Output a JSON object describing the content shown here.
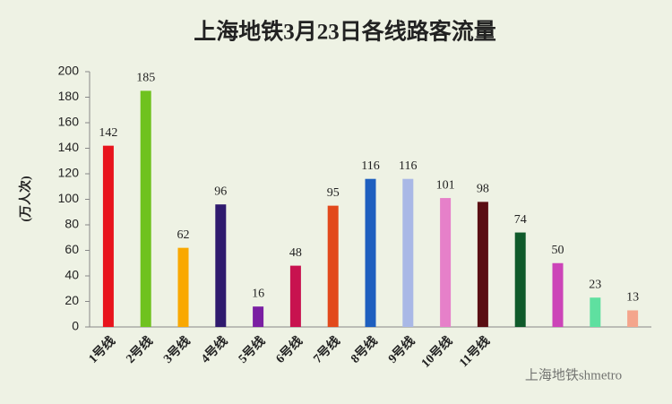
{
  "chart_data": {
    "type": "bar",
    "title": "上海地铁3月23日各线路客流量",
    "y_label": "(万人次)",
    "watermark": "上海地铁shmetro",
    "categories": [
      "1号线",
      "2号线",
      "3号线",
      "4号线",
      "5号线",
      "6号线",
      "7号线",
      "8号线",
      "9号线",
      "10号线",
      "11号线",
      null,
      null,
      null,
      null
    ],
    "values": [
      142,
      185,
      62,
      96,
      16,
      48,
      95,
      116,
      116,
      101,
      98,
      74,
      50,
      23,
      13
    ],
    "colors": [
      "#e8141c",
      "#6fc21e",
      "#f9a800",
      "#2f1a6e",
      "#7a1fa2",
      "#c8124f",
      "#e2491b",
      "#1e5fbf",
      "#a9b8e6",
      "#e680c9",
      "#5a0e13",
      "#0f5a2a",
      "#cc44b8",
      "#5fe0a0",
      "#f4a58c"
    ],
    "ylim": [
      0,
      200
    ],
    "yticks": [
      0,
      20,
      40,
      60,
      80,
      100,
      120,
      140,
      160,
      180,
      200
    ],
    "grid": false
  }
}
